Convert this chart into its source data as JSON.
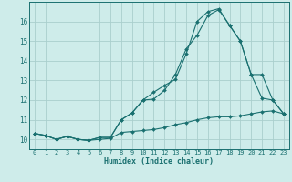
{
  "xlabel": "Humidex (Indice chaleur)",
  "bg_color": "#ceecea",
  "grid_color": "#aacfcd",
  "line_color": "#1a7070",
  "xlim": [
    -0.5,
    23.5
  ],
  "ylim": [
    9.5,
    17.0
  ],
  "yticks": [
    10,
    11,
    12,
    13,
    14,
    15,
    16
  ],
  "xticks": [
    0,
    1,
    2,
    3,
    4,
    5,
    6,
    7,
    8,
    9,
    10,
    11,
    12,
    13,
    14,
    15,
    16,
    17,
    18,
    19,
    20,
    21,
    22,
    23
  ],
  "line1_x": [
    0,
    1,
    2,
    3,
    4,
    5,
    6,
    7,
    8,
    9,
    10,
    11,
    12,
    13,
    14,
    15,
    16,
    17,
    18,
    19,
    20,
    21,
    22,
    23
  ],
  "line1_y": [
    10.3,
    10.2,
    10.0,
    10.15,
    10.0,
    9.95,
    10.0,
    10.05,
    10.35,
    10.4,
    10.45,
    10.5,
    10.6,
    10.75,
    10.85,
    11.0,
    11.1,
    11.15,
    11.15,
    11.2,
    11.3,
    11.4,
    11.45,
    11.3
  ],
  "line2_x": [
    0,
    1,
    2,
    3,
    4,
    5,
    6,
    7,
    8,
    9,
    10,
    11,
    12,
    13,
    14,
    15,
    16,
    17,
    18,
    19,
    20,
    21,
    22,
    23
  ],
  "line2_y": [
    10.3,
    10.2,
    10.0,
    10.15,
    10.0,
    9.95,
    10.1,
    10.1,
    11.0,
    11.35,
    12.0,
    12.05,
    12.5,
    13.3,
    14.6,
    15.3,
    16.3,
    16.6,
    15.8,
    15.0,
    13.3,
    12.1,
    12.0,
    11.3
  ],
  "line3_x": [
    0,
    1,
    2,
    3,
    4,
    5,
    6,
    7,
    8,
    9,
    10,
    11,
    12,
    13,
    14,
    15,
    16,
    17,
    18,
    19,
    20,
    21,
    22,
    23
  ],
  "line3_y": [
    10.3,
    10.2,
    10.0,
    10.15,
    10.0,
    9.95,
    10.1,
    10.1,
    11.0,
    11.35,
    12.0,
    12.4,
    12.75,
    13.05,
    14.35,
    16.0,
    16.5,
    16.65,
    15.8,
    15.0,
    13.3,
    13.3,
    12.0,
    11.3
  ]
}
